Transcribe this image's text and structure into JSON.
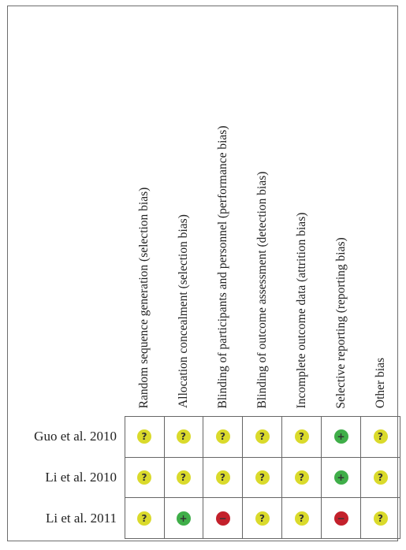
{
  "columns": [
    "Random sequence generation (selection bias)",
    "Allocation concealment (selection bias)",
    "Blinding of participants and personnel (performance bias)",
    "Blinding of outcome assessment (detection bias)",
    "Incomplete outcome data (attrition bias)",
    "Selective reporting (reporting bias)",
    "Other bias"
  ],
  "rows": [
    {
      "study": "Guo et al. 2010",
      "ratings": [
        "?",
        "?",
        "?",
        "?",
        "?",
        "+",
        "?"
      ]
    },
    {
      "study": "Li et al. 2010",
      "ratings": [
        "?",
        "?",
        "?",
        "?",
        "?",
        "+",
        "?"
      ]
    },
    {
      "study": "Li et al. 2011",
      "ratings": [
        "?",
        "+",
        "−",
        "?",
        "?",
        "−",
        "?"
      ]
    }
  ],
  "colors": {
    "unclear": "#dada2b",
    "low": "#3fae49",
    "high": "#c3202b"
  }
}
